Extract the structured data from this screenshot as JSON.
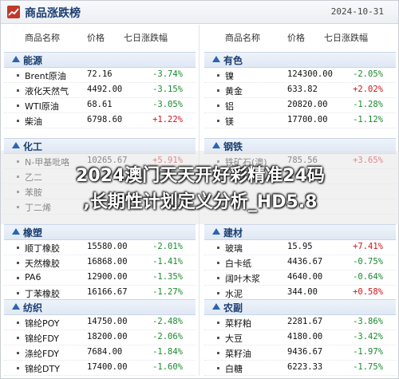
{
  "header": {
    "title": "商品涨跌榜",
    "date": "2024-10-31"
  },
  "columns": {
    "name": "商品名称",
    "price": "价格",
    "change": "七日涨跌幅"
  },
  "left": [
    {
      "section": "能源",
      "rows": [
        {
          "name": "Brent原油",
          "price": "72.16",
          "change": "-3.74%",
          "dir": "down"
        },
        {
          "name": "液化天然气",
          "price": "4492.00",
          "change": "-3.15%",
          "dir": "down"
        },
        {
          "name": "WTI原油",
          "price": "68.61",
          "change": "-3.05%",
          "dir": "down"
        },
        {
          "name": "柴油",
          "price": "6798.60",
          "change": "+1.22%",
          "dir": "up"
        }
      ]
    },
    {
      "section": "化工",
      "rows": [
        {
          "name": "N-甲基吡咯",
          "price": "10265.67",
          "change": "+5.91%",
          "dir": "up"
        },
        {
          "name": "乙二",
          "price": "",
          "change": "",
          "dir": "up"
        },
        {
          "name": "苯胺",
          "price": "",
          "change": "",
          "dir": "up"
        },
        {
          "name": "丁二烯",
          "price": "",
          "change": "",
          "dir": "up"
        }
      ]
    },
    {
      "section": "橡塑",
      "rows": [
        {
          "name": "顺丁橡胶",
          "price": "15580.00",
          "change": "-2.01%",
          "dir": "down"
        },
        {
          "name": "天然橡胶",
          "price": "16868.00",
          "change": "-1.41%",
          "dir": "down"
        },
        {
          "name": "PA6",
          "price": "12900.00",
          "change": "-1.35%",
          "dir": "down"
        },
        {
          "name": "丁苯橡胶",
          "price": "16166.67",
          "change": "-1.27%",
          "dir": "down"
        }
      ]
    },
    {
      "section": "纺织",
      "rows": [
        {
          "name": "锦纶POY",
          "price": "14750.00",
          "change": "-2.48%",
          "dir": "down"
        },
        {
          "name": "锦纶FDY",
          "price": "18200.00",
          "change": "-2.06%",
          "dir": "down"
        },
        {
          "name": "涤纶FDY",
          "price": "7684.00",
          "change": "-1.84%",
          "dir": "down"
        },
        {
          "name": "锦纶DTY",
          "price": "17400.00",
          "change": "-1.60%",
          "dir": "down"
        }
      ]
    }
  ],
  "right": [
    {
      "section": "有色",
      "rows": [
        {
          "name": "镍",
          "price": "124300.00",
          "change": "-2.05%",
          "dir": "down"
        },
        {
          "name": "黄金",
          "price": "633.82",
          "change": "+2.02%",
          "dir": "up"
        },
        {
          "name": "铝",
          "price": "20820.00",
          "change": "-1.28%",
          "dir": "down"
        },
        {
          "name": "镁",
          "price": "17700.00",
          "change": "-1.12%",
          "dir": "down"
        }
      ]
    },
    {
      "section": "钢铁",
      "rows": [
        {
          "name": "铁矿石(澳)",
          "price": "785.56",
          "change": "+3.65%",
          "dir": "up"
        },
        {
          "name": "",
          "price": "",
          "change": "",
          "dir": "up"
        },
        {
          "name": "",
          "price": "",
          "change": "",
          "dir": "up"
        },
        {
          "name": "",
          "price": "",
          "change": "",
          "dir": "up"
        }
      ]
    },
    {
      "section": "建材",
      "rows": [
        {
          "name": "玻璃",
          "price": "15.95",
          "change": "+7.41%",
          "dir": "up"
        },
        {
          "name": "白卡纸",
          "price": "4436.67",
          "change": "-0.75%",
          "dir": "down"
        },
        {
          "name": "阔叶木浆",
          "price": "4640.00",
          "change": "-0.64%",
          "dir": "down"
        },
        {
          "name": "水泥",
          "price": "344.00",
          "change": "+0.58%",
          "dir": "up"
        }
      ]
    },
    {
      "section": "农副",
      "rows": [
        {
          "name": "菜籽粕",
          "price": "2281.67",
          "change": "-3.86%",
          "dir": "down"
        },
        {
          "name": "大豆",
          "price": "4180.00",
          "change": "-3.42%",
          "dir": "down"
        },
        {
          "name": "菜籽油",
          "price": "9436.67",
          "change": "-1.97%",
          "dir": "down"
        },
        {
          "name": "白糖",
          "price": "6223.33",
          "change": "-1.75%",
          "dir": "down"
        }
      ]
    }
  ],
  "overlay": {
    "line1": "2024澳门天天开好彩精准24码",
    "line2": ",长期性计划定义分析_HD5.8"
  }
}
